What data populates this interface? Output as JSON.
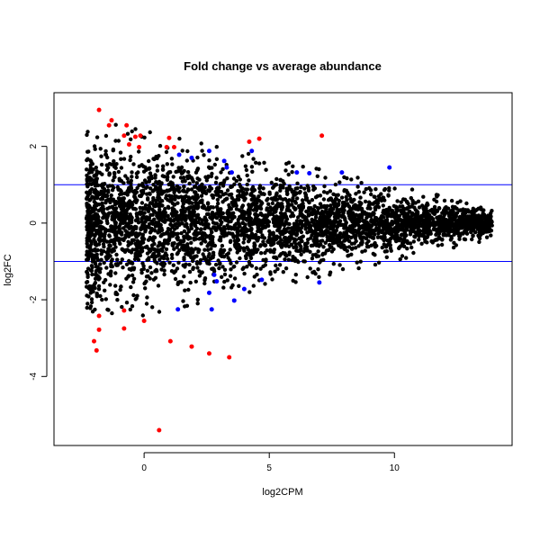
{
  "chart_data": {
    "type": "scatter",
    "title": "Fold change vs average abundance",
    "xlabel": "log2CPM",
    "ylabel": "log2FC",
    "xlim": [
      -3.6,
      14.7
    ],
    "ylim": [
      -5.8,
      3.4
    ],
    "xticks": [
      0,
      5,
      10
    ],
    "yticks": [
      2,
      0,
      -2,
      -4
    ],
    "grid": false,
    "legend": "none",
    "hlines": [
      {
        "y": 1,
        "color": "#0000ff"
      },
      {
        "y": -1,
        "color": "#0000ff"
      }
    ],
    "bulk": {
      "description_color_only": true,
      "color": "#000000",
      "point_count": 4000,
      "x_range": [
        -2.3,
        13.9
      ],
      "spread_near_low_x": 2.6,
      "spread_near_high_x": 0.4
    },
    "series": [
      {
        "color": "#ff0000",
        "points": [
          {
            "x": -1.8,
            "y": 2.95
          },
          {
            "x": -1.3,
            "y": 2.68
          },
          {
            "x": -0.7,
            "y": 2.55
          },
          {
            "x": -1.4,
            "y": 2.55
          },
          {
            "x": -0.8,
            "y": 2.28
          },
          {
            "x": -0.35,
            "y": 2.25
          },
          {
            "x": -0.15,
            "y": 2.28
          },
          {
            "x": -0.6,
            "y": 2.05
          },
          {
            "x": -0.2,
            "y": 1.98
          },
          {
            "x": 1.0,
            "y": 2.22
          },
          {
            "x": 0.9,
            "y": 1.98
          },
          {
            "x": 1.2,
            "y": 1.98
          },
          {
            "x": 4.2,
            "y": 2.12
          },
          {
            "x": 4.6,
            "y": 2.2
          },
          {
            "x": 7.1,
            "y": 2.28
          },
          {
            "x": -1.8,
            "y": -2.42
          },
          {
            "x": -0.8,
            "y": -2.28
          },
          {
            "x": 0.0,
            "y": -2.55
          },
          {
            "x": -0.8,
            "y": -2.75
          },
          {
            "x": -1.8,
            "y": -2.78
          },
          {
            "x": -2.0,
            "y": -3.08
          },
          {
            "x": 1.05,
            "y": -3.08
          },
          {
            "x": 1.9,
            "y": -3.22
          },
          {
            "x": -1.9,
            "y": -3.32
          },
          {
            "x": 2.6,
            "y": -3.4
          },
          {
            "x": 3.4,
            "y": -3.5
          },
          {
            "x": 0.6,
            "y": -5.4
          }
        ]
      },
      {
        "color": "#0000ff",
        "points": [
          {
            "x": 1.4,
            "y": 1.78
          },
          {
            "x": 1.9,
            "y": 1.7
          },
          {
            "x": 2.6,
            "y": 1.88
          },
          {
            "x": 3.2,
            "y": 1.62
          },
          {
            "x": 4.3,
            "y": 1.88
          },
          {
            "x": 3.3,
            "y": 1.45
          },
          {
            "x": 3.5,
            "y": 1.32
          },
          {
            "x": 6.1,
            "y": 1.32
          },
          {
            "x": 6.6,
            "y": 1.3
          },
          {
            "x": 9.8,
            "y": 1.45
          },
          {
            "x": 7.9,
            "y": 1.32
          },
          {
            "x": 1.35,
            "y": -2.25
          },
          {
            "x": 2.6,
            "y": -1.82
          },
          {
            "x": 2.7,
            "y": -2.25
          },
          {
            "x": 2.9,
            "y": -1.52
          },
          {
            "x": 3.6,
            "y": -2.02
          },
          {
            "x": 4.0,
            "y": -1.72
          },
          {
            "x": 4.7,
            "y": -1.48
          },
          {
            "x": 7.0,
            "y": -1.55
          },
          {
            "x": 2.8,
            "y": -1.35
          }
        ]
      }
    ]
  }
}
